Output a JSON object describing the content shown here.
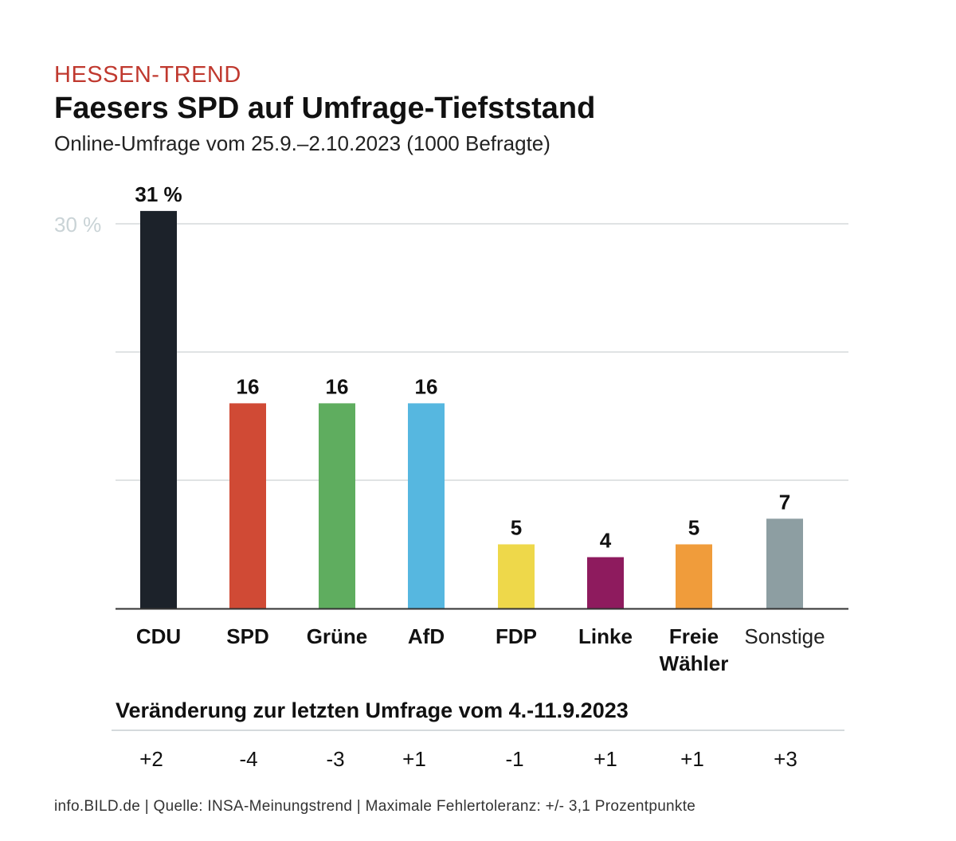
{
  "chart_data": {
    "type": "bar",
    "kicker": "HESSEN-TREND",
    "title": "Faesers SPD auf Umfrage-Tiefststand",
    "subtitle": "Online-Umfrage vom 25.9.–2.10.2023 (1000 Befragte)",
    "categories": [
      "CDU",
      "SPD",
      "Grüne",
      "AfD",
      "FDP",
      "Linke",
      "Freie Wähler",
      "Sonstige"
    ],
    "values": [
      31,
      16,
      16,
      16,
      5,
      4,
      5,
      7
    ],
    "value_labels": [
      "31 %",
      "16",
      "16",
      "16",
      "5",
      "4",
      "5",
      "7"
    ],
    "colors": [
      "#1c222a",
      "#d04a35",
      "#5fad5f",
      "#56b7e0",
      "#eed84a",
      "#8e1b5e",
      "#f09c3b",
      "#8d9ea2"
    ],
    "ylim": [
      0,
      30
    ],
    "gridlines": [
      10,
      20,
      30
    ],
    "ytick_label": "30 %",
    "ylabel": "",
    "xlabel": "",
    "grid": true,
    "change_title": "Veränderung zur letzten Umfrage vom 4.-11.9.2023",
    "changes": [
      "+2",
      "-4",
      "-3",
      "+1",
      "-1",
      "+1",
      "+1",
      "+3"
    ]
  },
  "footer": "info.BILD.de | Quelle: INSA-Meinungstrend | Maximale Fehlertoleranz: +/- 3,1 Prozentpunkte"
}
